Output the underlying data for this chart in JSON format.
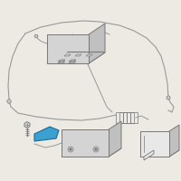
{
  "bg_color": "#edeae4",
  "line_color": "#999999",
  "edge_color": "#777777",
  "highlight_color": "#3ca0d0",
  "highlight_edge": "#1a6a99",
  "face_light": "#e8e8e8",
  "face_mid": "#d4d4d4",
  "face_dark": "#c0c0c0",
  "face_top": "#ebebeb",
  "screw_color": "#bbbbbb"
}
